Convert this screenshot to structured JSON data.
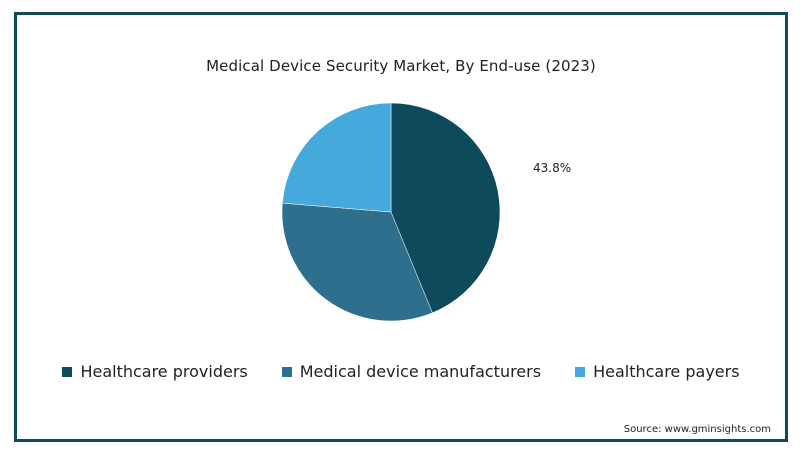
{
  "chart_data": {
    "type": "pie",
    "title": "Medical Device Security Market, By End-use (2023)",
    "slices": [
      {
        "label": "Healthcare providers",
        "value": 43.8,
        "color": "#0d4a5c",
        "data_label": "43.8%"
      },
      {
        "label": "Medical device manufacturers",
        "value": 32.5,
        "color": "#2e6f8e",
        "data_label": ""
      },
      {
        "label": "Healthcare payers",
        "value": 23.7,
        "color": "#45a9dc",
        "data_label": ""
      }
    ],
    "legend_position": "bottom",
    "start_angle": "12 o'clock, clockwise"
  },
  "source": "Source: www.gminsights.com"
}
